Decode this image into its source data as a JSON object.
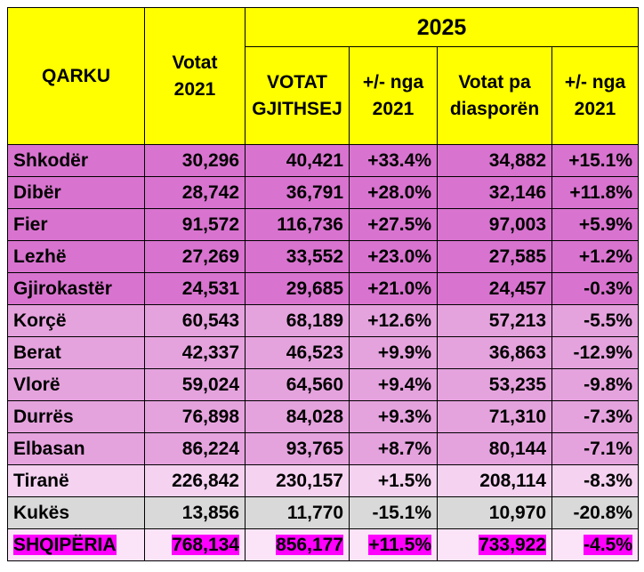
{
  "header": {
    "region": "QARKU",
    "votes_2021": "Votat\n2021",
    "year": "2025",
    "columns": [
      "VOTAT\nGJITHSEJ",
      "+/- nga\n2021",
      "Votat pa\ndiasporën",
      "+/- nga\n2021"
    ]
  },
  "table": {
    "rows": [
      [
        "Shkodër",
        "30,296",
        "40,421",
        "+33.4%",
        "34,882",
        "+15.1%"
      ],
      [
        "Dibër",
        "28,742",
        "36,791",
        "+28.0%",
        "32,146",
        "+11.8%"
      ],
      [
        "Fier",
        "91,572",
        "116,736",
        "+27.5%",
        "97,003",
        "+5.9%"
      ],
      [
        "Lezhë",
        "27,269",
        "33,552",
        "+23.0%",
        "27,585",
        "+1.2%"
      ],
      [
        "Gjirokastër",
        "24,531",
        "29,685",
        "+21.0%",
        "24,457",
        "-0.3%"
      ],
      [
        "Korçë",
        "60,543",
        "68,189",
        "+12.6%",
        "57,213",
        "-5.5%"
      ],
      [
        "Berat",
        "42,337",
        "46,523",
        "+9.9%",
        "36,863",
        "-12.9%"
      ],
      [
        "Vlorë",
        "59,024",
        "64,560",
        "+9.4%",
        "53,235",
        "-9.8%"
      ],
      [
        "Durrës",
        "76,898",
        "84,028",
        "+9.3%",
        "71,310",
        "-7.3%"
      ],
      [
        "Elbasan",
        "86,224",
        "93,765",
        "+8.7%",
        "80,144",
        "-7.1%"
      ],
      [
        "Tiranë",
        "226,842",
        "230,157",
        "+1.5%",
        "208,114",
        "-8.3%"
      ],
      [
        "Kukës",
        "13,856",
        "11,770",
        "-15.1%",
        "10,970",
        "-20.8%"
      ],
      [
        "SHQIPËRIA",
        "768,134",
        "856,177",
        "+11.5%",
        "733,922",
        "-4.5%"
      ]
    ]
  }
}
